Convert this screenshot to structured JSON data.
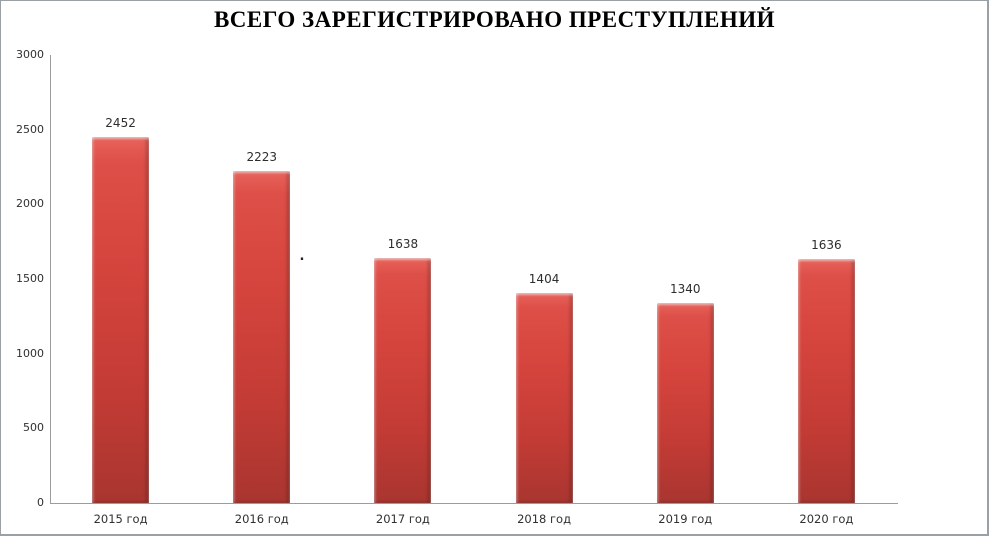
{
  "title": "ВСЕГО ЗАРЕГИСТРИРОВАНО ПРЕСТУПЛЕНИЙ",
  "chart_data": {
    "type": "bar",
    "title": "ВСЕГО ЗАРЕГИСТРИРОВАНО ПРЕСТУПЛЕНИЙ",
    "categories": [
      "2015 год",
      "2016 год",
      "2017 год",
      "2018 год",
      "2019 год",
      "2020 год"
    ],
    "values": [
      2452,
      2223,
      1638,
      1404,
      1340,
      1636
    ],
    "data_labels": [
      "2452",
      "2223",
      "1638",
      "1404",
      "1340",
      "1636"
    ],
    "xlabel": "",
    "ylabel": "",
    "ylim": [
      0,
      3000
    ],
    "yticks": [
      0,
      500,
      1000,
      1500,
      2000,
      2500,
      3000
    ],
    "grid": false,
    "legend": "none",
    "data_labels_shown": true
  },
  "annotations": {
    "stray_dot": "."
  },
  "colors": {
    "bar_top": "#e8635c",
    "bar_mid": "#d6453e",
    "bar_bottom": "#a93530",
    "axis": "#9c9c9c",
    "frame_border": "#9aa0a4",
    "label_text": "#303030",
    "title_text": "#000000",
    "background": "#ffffff"
  }
}
